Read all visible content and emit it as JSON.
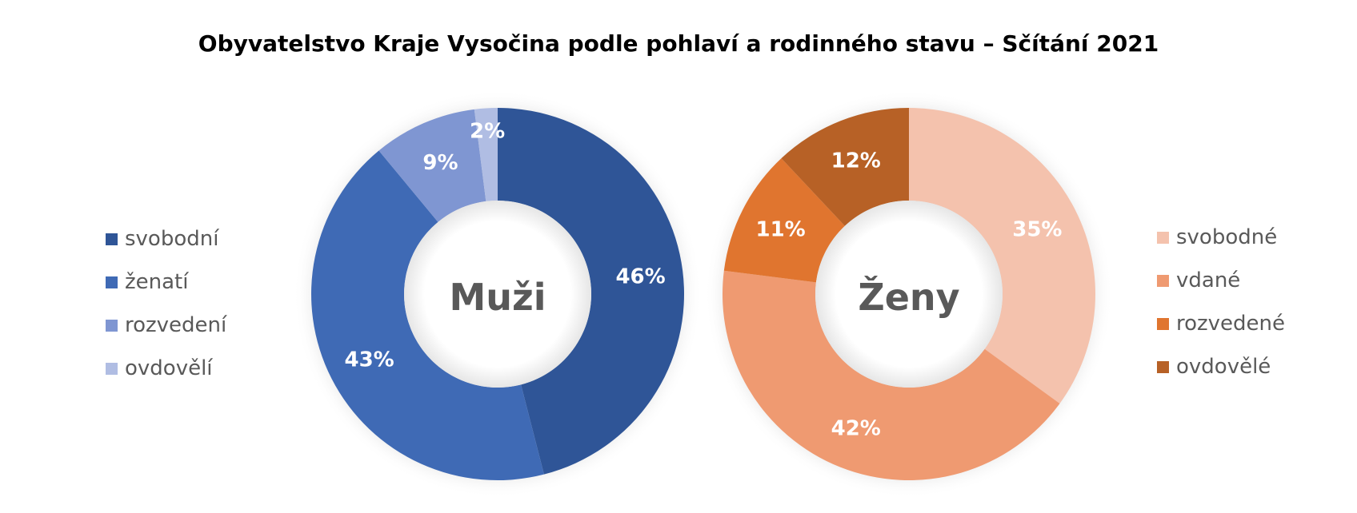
{
  "chart_data": {
    "type": "donut",
    "title": "Obyvatelstvo Kraje Vysočina podle pohlaví a rodinného stavu – Sčítání 2021",
    "charts": [
      {
        "center_label": "Muži",
        "categories": [
          "svobodní",
          "ženatí",
          "rozvedení",
          "ovdovělí"
        ],
        "values": [
          46,
          43,
          9,
          2
        ],
        "labels": [
          "46%",
          "43%",
          "9%",
          "2%"
        ],
        "colors": [
          "#2f5597",
          "#3f6ab5",
          "#7f96d2",
          "#b0bde3"
        ],
        "legend_position": "left"
      },
      {
        "center_label": "Ženy",
        "categories": [
          "svobodné",
          "vdané",
          "rozvedené",
          "ovdovělé"
        ],
        "values": [
          35,
          42,
          11,
          12
        ],
        "labels": [
          "35%",
          "42%",
          "11%",
          "12%"
        ],
        "colors": [
          "#f4c2ad",
          "#ef9a71",
          "#e0752f",
          "#b76126"
        ],
        "legend_position": "right"
      }
    ]
  }
}
